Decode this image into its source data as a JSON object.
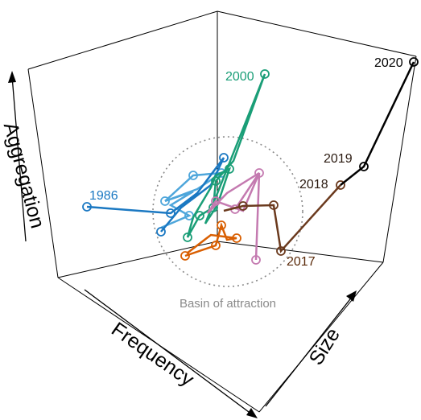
{
  "chart_data": {
    "type": "line",
    "subtype": "3d-trajectory",
    "axes": {
      "x": "Frequency",
      "y": "Size",
      "z": "Aggregation"
    },
    "annotations": [
      {
        "text": "Basin of attraction",
        "shape": "dotted-circle",
        "color": "#8a8a8a"
      }
    ],
    "year_labels": [
      {
        "text": "1986",
        "color": "#1a78c2"
      },
      {
        "text": "2000",
        "color": "#1a9e77"
      },
      {
        "text": "2017",
        "color": "#5a2a0a"
      },
      {
        "text": "2018",
        "color": "#2a1a10"
      },
      {
        "text": "2019",
        "color": "#2a1a10"
      },
      {
        "text": "2020",
        "color": "#000000"
      }
    ],
    "series": [
      {
        "color": "#1a78c2"
      },
      {
        "color": "#4ea6db"
      },
      {
        "color": "#1a9e77"
      },
      {
        "color": "#d95f02"
      },
      {
        "color": "#c47ab0"
      },
      {
        "color": "#6b3a1e"
      },
      {
        "color": "#000000"
      }
    ]
  }
}
